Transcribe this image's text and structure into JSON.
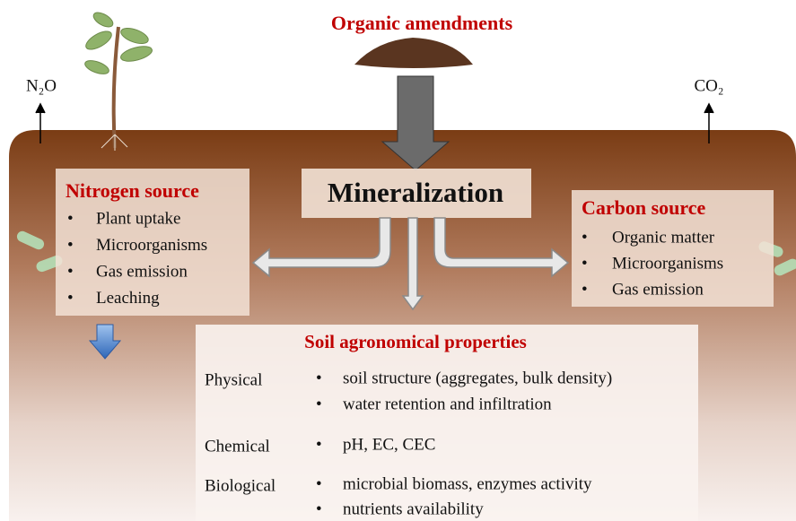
{
  "header": {
    "title": "Organic amendments"
  },
  "gases": [
    "N₂O",
    "CO₂"
  ],
  "center": {
    "label": "Mineralization"
  },
  "nitrogen_source": {
    "title": "Nitrogen source",
    "items": [
      "Plant uptake",
      "Microorganisms",
      "Gas emission",
      "Leaching"
    ]
  },
  "carbon_source": {
    "title": "Carbon source",
    "items": [
      "Organic matter",
      "Microorganisms",
      "Gas emission"
    ]
  },
  "soil_properties": {
    "title": "Soil agronomical properties",
    "groups": [
      {
        "label": "Physical",
        "items": [
          "soil structure (aggregates, bulk density)",
          "water retention and infiltration"
        ]
      },
      {
        "label": "Chemical",
        "items": [
          "pH, EC, CEC"
        ]
      },
      {
        "label": "Biological",
        "items": [
          "microbial biomass, enzymes activity",
          "nutrients availability"
        ]
      }
    ]
  }
}
